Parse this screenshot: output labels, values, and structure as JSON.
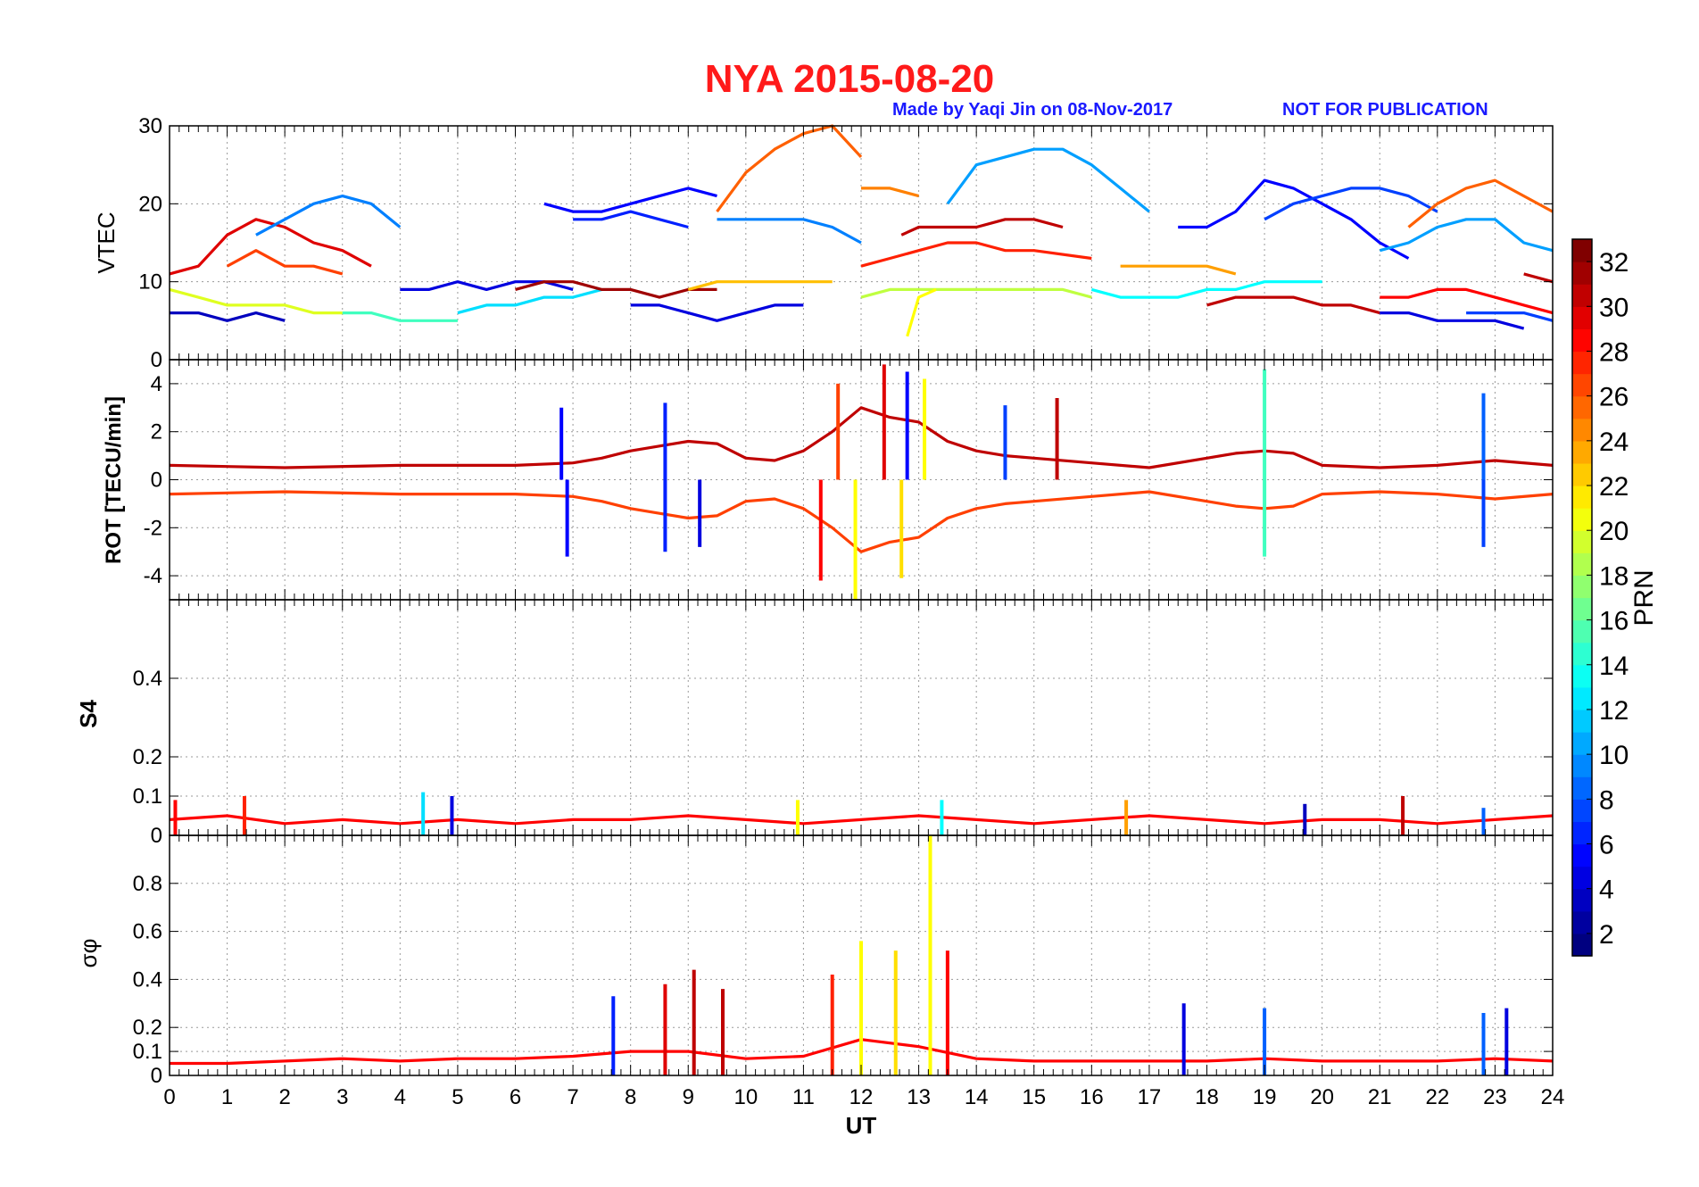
{
  "header": {
    "title": "NYA   2015-08-20",
    "credit": "Made by Yaqi Jin on 08-Nov-2017",
    "notice": "NOT FOR PUBLICATION"
  },
  "colors": {
    "title": "#ff1a1a",
    "credit": "#1a1aff",
    "colormap": "jet"
  },
  "chart_data": [
    {
      "type": "line",
      "panel": "VTEC",
      "ylabel": "VTEC",
      "xlim": [
        0,
        24
      ],
      "ylim": [
        0,
        30
      ],
      "yticks": [
        "0",
        "10",
        "20",
        "30"
      ],
      "grid": true,
      "series": [
        {
          "prn": 30,
          "x": [
            0,
            0.5,
            1,
            1.5,
            2,
            2.5,
            3,
            3.5
          ],
          "y": [
            11,
            12,
            16,
            18,
            17,
            15,
            14,
            12
          ]
        },
        {
          "prn": 27,
          "x": [
            1,
            1.5,
            2,
            2.5,
            3
          ],
          "y": [
            12,
            14,
            12,
            12,
            11
          ]
        },
        {
          "prn": 9,
          "x": [
            1.5,
            2,
            2.5,
            3,
            3.5,
            4
          ],
          "y": [
            16,
            18,
            20,
            21,
            20,
            17
          ]
        },
        {
          "prn": 5,
          "x": [
            6.5,
            7,
            7.5,
            8,
            8.5,
            9,
            9.5
          ],
          "y": [
            20,
            19,
            19,
            20,
            21,
            22,
            21
          ]
        },
        {
          "prn": 6,
          "x": [
            7,
            7.5,
            8,
            8.5,
            9
          ],
          "y": [
            18,
            18,
            19,
            18,
            17
          ]
        },
        {
          "prn": 26,
          "x": [
            9.5,
            10,
            10.5,
            11,
            11.5,
            12
          ],
          "y": [
            19,
            24,
            27,
            29,
            30,
            26
          ]
        },
        {
          "prn": 9,
          "x": [
            9.5,
            10,
            10.5,
            11,
            11.5,
            12
          ],
          "y": [
            18,
            18,
            18,
            18,
            17,
            15
          ]
        },
        {
          "prn": 25,
          "x": [
            12,
            12.5,
            13
          ],
          "y": [
            22,
            22,
            21
          ]
        },
        {
          "prn": 10,
          "x": [
            13.5,
            14,
            14.5,
            15,
            15.5,
            16,
            16.5,
            17
          ],
          "y": [
            20,
            25,
            26,
            27,
            27,
            25,
            22,
            19
          ]
        },
        {
          "prn": 31,
          "x": [
            12.7,
            13,
            13.5,
            14,
            14.5,
            15,
            15.5
          ],
          "y": [
            16,
            17,
            17,
            17,
            18,
            18,
            17
          ]
        },
        {
          "prn": 28,
          "x": [
            12,
            12.5,
            13,
            13.5,
            14,
            14.5,
            15,
            16
          ],
          "y": [
            12,
            13,
            14,
            15,
            15,
            14,
            14,
            13
          ]
        },
        {
          "prn": 24,
          "x": [
            16.5,
            17,
            17.5,
            18,
            18.5
          ],
          "y": [
            12,
            12,
            12,
            12,
            11
          ]
        },
        {
          "prn": 5,
          "x": [
            17.5,
            18,
            18.5,
            19,
            19.5,
            20,
            20.5,
            21,
            21.5
          ],
          "y": [
            17,
            17,
            19,
            23,
            22,
            20,
            18,
            15,
            13
          ]
        },
        {
          "prn": 7,
          "x": [
            19,
            19.5,
            20,
            20.5,
            21,
            21.5,
            22
          ],
          "y": [
            18,
            20,
            21,
            22,
            22,
            21,
            19
          ]
        },
        {
          "prn": 26,
          "x": [
            21.5,
            22,
            22.5,
            23,
            23.5,
            24
          ],
          "y": [
            17,
            20,
            22,
            23,
            21,
            19
          ]
        },
        {
          "prn": 10,
          "x": [
            21,
            21.5,
            22,
            22.5,
            23,
            23.5,
            24
          ],
          "y": [
            14,
            15,
            17,
            18,
            18,
            15,
            14
          ]
        },
        {
          "prn": 31,
          "x": [
            23.5,
            24
          ],
          "y": [
            11,
            10
          ]
        },
        {
          "prn": 3,
          "x": [
            0,
            0.5,
            1,
            1.5,
            2
          ],
          "y": [
            6,
            6,
            5,
            6,
            5
          ]
        },
        {
          "prn": 20,
          "x": [
            0,
            0.5,
            1,
            1.5,
            2,
            2.5,
            3
          ],
          "y": [
            9,
            8,
            7,
            7,
            7,
            6,
            6
          ]
        },
        {
          "prn": 15,
          "x": [
            3,
            3.5,
            4,
            4.5,
            5
          ],
          "y": [
            6,
            6,
            5,
            5,
            5
          ]
        },
        {
          "prn": 4,
          "x": [
            4,
            4.5,
            5,
            5.5,
            6,
            6.5,
            7
          ],
          "y": [
            9,
            9,
            10,
            9,
            10,
            10,
            9
          ]
        },
        {
          "prn": 12,
          "x": [
            5,
            5.5,
            6,
            6.5,
            7,
            7.5
          ],
          "y": [
            6,
            7,
            7,
            8,
            8,
            9
          ]
        },
        {
          "prn": 32,
          "x": [
            6,
            6.5,
            7,
            7.5,
            8,
            8.5,
            9,
            9.5
          ],
          "y": [
            9,
            10,
            10,
            9,
            9,
            8,
            9,
            9
          ]
        },
        {
          "prn": 4,
          "x": [
            8,
            8.5,
            9,
            9.5,
            10,
            10.5,
            11
          ],
          "y": [
            7,
            7,
            6,
            5,
            6,
            7,
            7
          ]
        },
        {
          "prn": 23,
          "x": [
            9,
            9.5,
            10,
            10.5,
            11,
            11.5
          ],
          "y": [
            9,
            10,
            10,
            10,
            10,
            10
          ]
        },
        {
          "prn": 19,
          "x": [
            12,
            12.5,
            13,
            13.5,
            14,
            14.5,
            15,
            15.5,
            16
          ],
          "y": [
            8,
            9,
            9,
            9,
            9,
            9,
            9,
            9,
            8
          ]
        },
        {
          "prn": 21,
          "x": [
            12.8,
            13,
            13.3
          ],
          "y": [
            3,
            8,
            9
          ]
        },
        {
          "prn": 13,
          "x": [
            16,
            16.5,
            17,
            17.5,
            18,
            18.5,
            19,
            19.5,
            20
          ],
          "y": [
            9,
            8,
            8,
            8,
            9,
            9,
            10,
            10,
            10
          ]
        },
        {
          "prn": 31,
          "x": [
            18,
            18.5,
            19,
            19.5,
            20,
            20.5,
            21
          ],
          "y": [
            7,
            8,
            8,
            8,
            7,
            7,
            6
          ]
        },
        {
          "prn": 4,
          "x": [
            21,
            21.5,
            22,
            22.5,
            23,
            23.5
          ],
          "y": [
            6,
            6,
            5,
            5,
            5,
            4
          ]
        },
        {
          "prn": 29,
          "x": [
            21,
            21.5,
            22,
            22.5,
            23,
            23.5,
            24
          ],
          "y": [
            8,
            8,
            9,
            9,
            8,
            7,
            6
          ]
        },
        {
          "prn": 7,
          "x": [
            22.5,
            23,
            23.5,
            24
          ],
          "y": [
            6,
            6,
            6,
            5
          ]
        }
      ]
    },
    {
      "type": "line",
      "panel": "ROT",
      "ylabel": "ROT [TECU/min]",
      "xlim": [
        0,
        24
      ],
      "ylim": [
        -5,
        5
      ],
      "yticks": [
        "-4",
        "-2",
        "0",
        "2",
        "4"
      ],
      "grid": true,
      "series": [
        {
          "prn": 31,
          "x": [
            0,
            2,
            4,
            6,
            7,
            7.5,
            8,
            8.5,
            9,
            9.5,
            10,
            10.5,
            11,
            11.5,
            12,
            12.5,
            13,
            13.5,
            14,
            14.5,
            15,
            16,
            17,
            18,
            18.5,
            19,
            19.5,
            20,
            21,
            22,
            23,
            24
          ],
          "y": [
            0.6,
            0.5,
            0.6,
            0.6,
            0.7,
            0.9,
            1.2,
            1.4,
            1.6,
            1.5,
            0.9,
            0.8,
            1.2,
            2.0,
            3.0,
            2.6,
            2.4,
            1.6,
            1.2,
            1.0,
            0.9,
            0.7,
            0.5,
            0.9,
            1.1,
            1.2,
            1.1,
            0.6,
            0.5,
            0.6,
            0.8,
            0.6
          ]
        },
        {
          "prn": 27,
          "x": [
            0,
            2,
            4,
            6,
            7,
            7.5,
            8,
            8.5,
            9,
            9.5,
            10,
            10.5,
            11,
            11.5,
            12,
            12.5,
            13,
            13.5,
            14,
            14.5,
            15,
            16,
            17,
            18,
            18.5,
            19,
            19.5,
            20,
            21,
            22,
            23,
            24
          ],
          "y": [
            -0.6,
            -0.5,
            -0.6,
            -0.6,
            -0.7,
            -0.9,
            -1.2,
            -1.4,
            -1.6,
            -1.5,
            -0.9,
            -0.8,
            -1.2,
            -2.0,
            -3.0,
            -2.6,
            -2.4,
            -1.6,
            -1.2,
            -1.0,
            -0.9,
            -0.7,
            -0.5,
            -0.9,
            -1.1,
            -1.2,
            -1.1,
            -0.6,
            -0.5,
            -0.6,
            -0.8,
            -0.6
          ]
        }
      ],
      "spikes": [
        {
          "x": 6.8,
          "y": 3.0,
          "prn": 5
        },
        {
          "x": 6.9,
          "y": -3.2,
          "prn": 5
        },
        {
          "x": 8.6,
          "y": 3.2,
          "prn": 6
        },
        {
          "x": 8.6,
          "y": -3.0,
          "prn": 6
        },
        {
          "x": 9.2,
          "y": -2.8,
          "prn": 4
        },
        {
          "x": 11.3,
          "y": -4.2,
          "prn": 29
        },
        {
          "x": 11.6,
          "y": 4.0,
          "prn": 27
        },
        {
          "x": 11.9,
          "y": -5.0,
          "prn": 21
        },
        {
          "x": 12.4,
          "y": 4.8,
          "prn": 30
        },
        {
          "x": 12.8,
          "y": 4.5,
          "prn": 5
        },
        {
          "x": 12.7,
          "y": -4.1,
          "prn": 22
        },
        {
          "x": 13.1,
          "y": 4.2,
          "prn": 21
        },
        {
          "x": 14.5,
          "y": 3.1,
          "prn": 7
        },
        {
          "x": 15.4,
          "y": 3.4,
          "prn": 31
        },
        {
          "x": 19.0,
          "y": 4.6,
          "prn": 15
        },
        {
          "x": 19.0,
          "y": -3.2,
          "prn": 15
        },
        {
          "x": 22.8,
          "y": 3.6,
          "prn": 8
        },
        {
          "x": 22.8,
          "y": -2.8,
          "prn": 7
        }
      ]
    },
    {
      "type": "line",
      "panel": "S4",
      "ylabel": "S4",
      "xlim": [
        0,
        24
      ],
      "ylim": [
        0,
        0.6
      ],
      "yticks": [
        "0",
        "0.1",
        "0.2",
        "0.4"
      ],
      "grid": true,
      "series": [
        {
          "prn": 29,
          "x": [
            0,
            1,
            2,
            3,
            4,
            5,
            6,
            7,
            8,
            9,
            10,
            11,
            12,
            13,
            14,
            15,
            16,
            17,
            18,
            19,
            20,
            21,
            22,
            23,
            24
          ],
          "y": [
            0.04,
            0.05,
            0.03,
            0.04,
            0.03,
            0.04,
            0.03,
            0.04,
            0.04,
            0.05,
            0.04,
            0.03,
            0.04,
            0.05,
            0.04,
            0.03,
            0.04,
            0.05,
            0.04,
            0.03,
            0.04,
            0.04,
            0.03,
            0.04,
            0.05
          ]
        }
      ],
      "spikes": [
        {
          "x": 0.1,
          "y": 0.09,
          "prn": 29
        },
        {
          "x": 1.3,
          "y": 0.1,
          "prn": 28
        },
        {
          "x": 4.4,
          "y": 0.11,
          "prn": 12
        },
        {
          "x": 4.9,
          "y": 0.1,
          "prn": 4
        },
        {
          "x": 10.9,
          "y": 0.09,
          "prn": 21
        },
        {
          "x": 13.4,
          "y": 0.09,
          "prn": 13
        },
        {
          "x": 16.6,
          "y": 0.09,
          "prn": 24
        },
        {
          "x": 19.7,
          "y": 0.08,
          "prn": 3
        },
        {
          "x": 21.4,
          "y": 0.1,
          "prn": 31
        },
        {
          "x": 22.8,
          "y": 0.07,
          "prn": 8
        }
      ]
    },
    {
      "type": "line",
      "panel": "sigma_phi",
      "ylabel": "σφ",
      "xlim": [
        0,
        24
      ],
      "ylim": [
        0,
        1
      ],
      "yticks": [
        "0",
        "0.1",
        "0.2",
        "0.4",
        "0.6",
        "0.8"
      ],
      "xticks": [
        "0",
        "1",
        "2",
        "3",
        "4",
        "5",
        "6",
        "7",
        "8",
        "9",
        "10",
        "11",
        "12",
        "13",
        "14",
        "15",
        "16",
        "17",
        "18",
        "19",
        "20",
        "21",
        "22",
        "23",
        "24"
      ],
      "xlabel": "UT",
      "grid": true,
      "series": [
        {
          "prn": 29,
          "x": [
            0,
            1,
            2,
            3,
            4,
            5,
            6,
            7,
            8,
            9,
            10,
            11,
            12,
            13,
            14,
            15,
            16,
            17,
            18,
            19,
            20,
            21,
            22,
            23,
            24
          ],
          "y": [
            0.05,
            0.05,
            0.06,
            0.07,
            0.06,
            0.07,
            0.07,
            0.08,
            0.1,
            0.1,
            0.07,
            0.08,
            0.15,
            0.12,
            0.07,
            0.06,
            0.06,
            0.06,
            0.06,
            0.07,
            0.06,
            0.06,
            0.06,
            0.07,
            0.06
          ]
        }
      ],
      "spikes": [
        {
          "x": 7.7,
          "y": 0.33,
          "prn": 6
        },
        {
          "x": 8.6,
          "y": 0.38,
          "prn": 30
        },
        {
          "x": 9.1,
          "y": 0.44,
          "prn": 31
        },
        {
          "x": 9.6,
          "y": 0.36,
          "prn": 31
        },
        {
          "x": 11.5,
          "y": 0.42,
          "prn": 28
        },
        {
          "x": 12.0,
          "y": 0.56,
          "prn": 21
        },
        {
          "x": 12.6,
          "y": 0.52,
          "prn": 22
        },
        {
          "x": 13.2,
          "y": 1.0,
          "prn": 21
        },
        {
          "x": 13.5,
          "y": 0.52,
          "prn": 29
        },
        {
          "x": 17.6,
          "y": 0.3,
          "prn": 4
        },
        {
          "x": 19.0,
          "y": 0.28,
          "prn": 8
        },
        {
          "x": 22.8,
          "y": 0.26,
          "prn": 8
        },
        {
          "x": 23.2,
          "y": 0.28,
          "prn": 4
        }
      ]
    }
  ],
  "colorbar": {
    "label": "PRN",
    "ticks": [
      "2",
      "4",
      "6",
      "8",
      "10",
      "12",
      "14",
      "16",
      "18",
      "20",
      "22",
      "24",
      "26",
      "28",
      "30",
      "32"
    ],
    "range": [
      1,
      33
    ]
  }
}
